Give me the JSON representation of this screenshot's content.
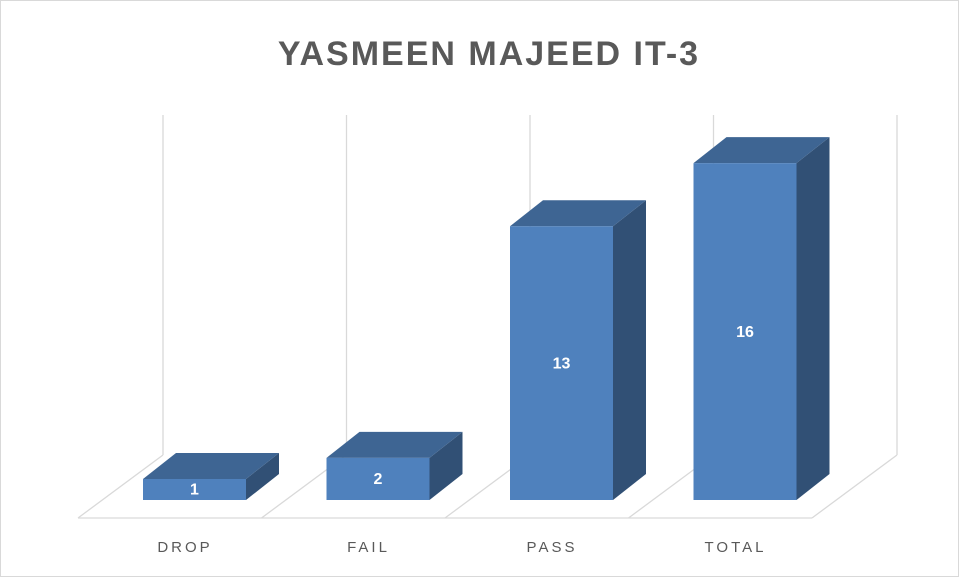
{
  "chart_data": {
    "type": "bar3d",
    "title": "YASMEEN MAJEED IT-3",
    "categories": [
      "DROP",
      "FAIL",
      "PASS",
      "TOTAL"
    ],
    "values": [
      1,
      2,
      13,
      16
    ],
    "color": "#4f81bd",
    "ylim": [
      0,
      18
    ],
    "grid": true
  }
}
